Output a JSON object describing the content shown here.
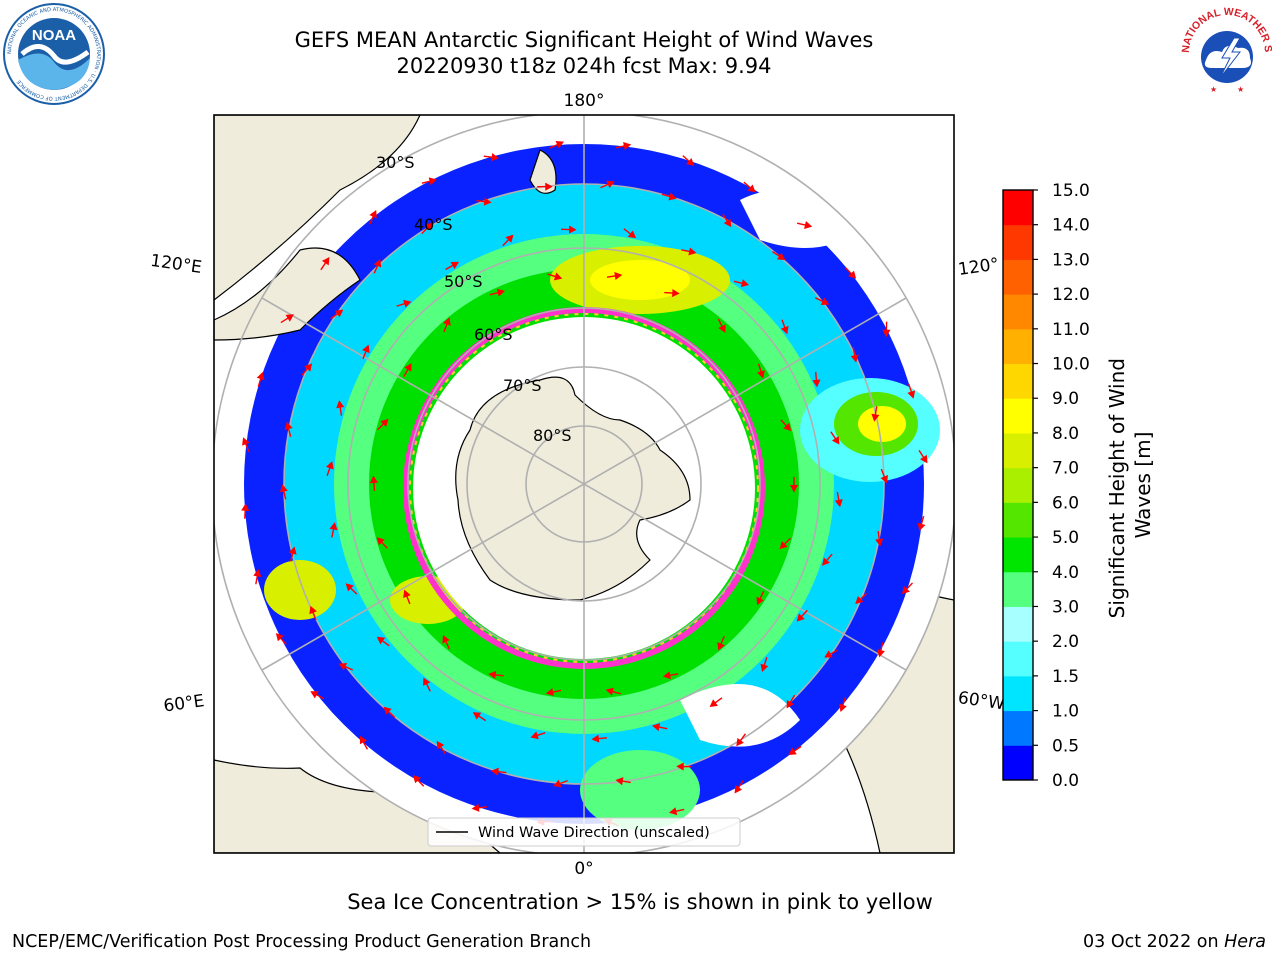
{
  "header": {
    "title_line1": "GEFS MEAN Antarctic Significant Height of Wind Waves",
    "title_line2": "20220930 t18z 024h fcst   Max: 9.94"
  },
  "logos": {
    "left": {
      "name": "NOAA",
      "ring_text": "NATIONAL OCEANIC AND ATMOSPHERIC ADMINISTRATION · U.S. DEPARTMENT OF COMMERCE",
      "color": "#1a5fa8"
    },
    "right": {
      "name": "NATIONAL WEATHER SERVICE",
      "color": "#d6202a"
    }
  },
  "map": {
    "projection": "south-polar-stereographic",
    "longitude_labels": {
      "top": "180°",
      "bottom": "0°",
      "upper_left": "120°E",
      "upper_right": "120°",
      "lower_left": "60°E",
      "lower_right": "60°W"
    },
    "latitude_labels": [
      "30°S",
      "40°S",
      "50°S",
      "60°S",
      "70°S",
      "80°S"
    ],
    "legend_text": "Wind Wave Direction (unscaled)",
    "land_color": "#efecdc",
    "sea_ice_colors": [
      "#ff33cc",
      "#ffcc33"
    ],
    "arrow_color": "#ff0000"
  },
  "colorbar": {
    "label_line1": "Significant Height of Wind",
    "label_line2": "Waves [m]",
    "ticks": [
      "0.0",
      "0.5",
      "1.0",
      "1.5",
      "2.0",
      "3.0",
      "4.0",
      "5.0",
      "6.0",
      "7.0",
      "8.0",
      "9.0",
      "10.0",
      "11.0",
      "12.0",
      "13.0",
      "14.0",
      "15.0"
    ],
    "colors": [
      "#0000ff",
      "#0078ff",
      "#00e5ff",
      "#55ffff",
      "#a8ffff",
      "#55ff80",
      "#00e600",
      "#55e600",
      "#aaee00",
      "#d8f000",
      "#ffff00",
      "#ffd700",
      "#ffb000",
      "#ff8800",
      "#ff6000",
      "#ff3800",
      "#ff0000"
    ]
  },
  "footer": {
    "subtitle": "Sea Ice Concentration > 15% is shown in pink to yellow",
    "left": "NCEP/EMC/Verification Post Processing Product Generation Branch",
    "right_date": "03 Oct 2022 on ",
    "right_machine": "Hera"
  }
}
